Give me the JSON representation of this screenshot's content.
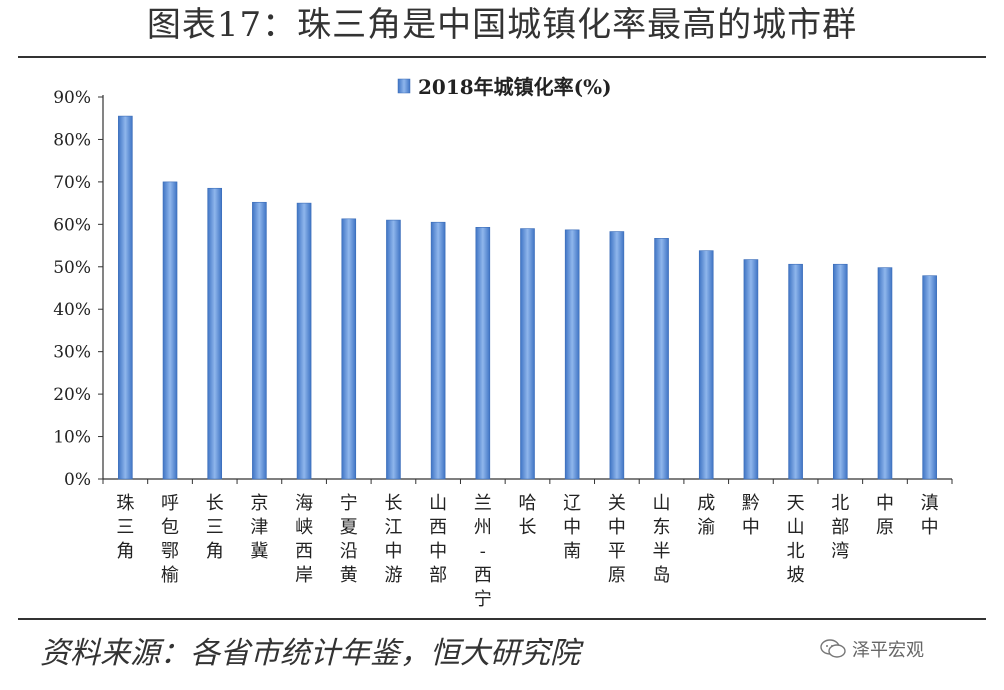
{
  "title": "图表17：珠三角是中国城镇化率最高的城市群",
  "source": "资料来源：各省市统计年鉴，恒大研究院",
  "watermark": "泽平宏观",
  "chart_data": {
    "type": "bar",
    "legend": "2018年城镇化率(%)",
    "legend_position": "top-center",
    "categories": [
      "珠三角",
      "呼包鄂榆",
      "长三角",
      "京津冀",
      "海峡西岸",
      "宁夏沿黄",
      "长江中游",
      "山西中部",
      "兰州-西宁",
      "哈长",
      "辽中南",
      "关中平原",
      "山东半岛",
      "成渝",
      "黔中",
      "天山北坡",
      "北部湾",
      "中原",
      "滇中"
    ],
    "values": [
      85.5,
      70.0,
      68.5,
      65.2,
      65.0,
      61.3,
      61.0,
      60.5,
      59.3,
      59.0,
      58.7,
      58.3,
      56.7,
      53.8,
      51.7,
      50.6,
      50.6,
      49.8,
      47.9
    ],
    "yticks": [
      "0%",
      "10%",
      "20%",
      "30%",
      "40%",
      "50%",
      "60%",
      "70%",
      "80%",
      "90%"
    ],
    "ylim": [
      0,
      90
    ],
    "grid": false,
    "bar_color": "#5b8fd6",
    "bar_edge_color": "#3a6cb8"
  }
}
